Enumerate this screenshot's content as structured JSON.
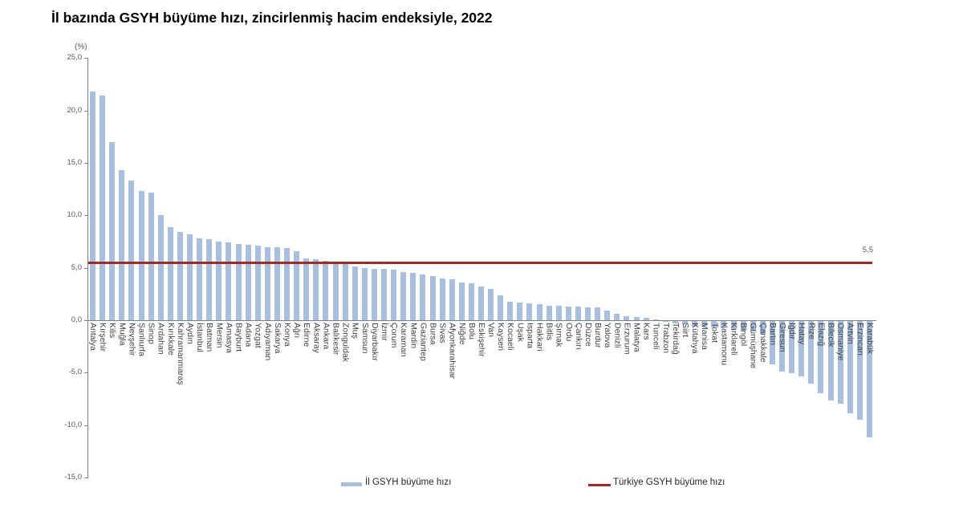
{
  "chart_data": {
    "type": "bar",
    "title": "İl bazında GSYH büyüme hızı, zincirlenmiş hacim endeksiyle, 2022",
    "unit_label": "(%)",
    "categories": [
      "Antalya",
      "Kırşehir",
      "Kilis",
      "Muğla",
      "Nevşehir",
      "Şanlıurfa",
      "Sinop",
      "Ardahan",
      "Kırıkkale",
      "Kahramanmaraş",
      "Aydın",
      "İstanbul",
      "Batman",
      "Mersin",
      "Amasya",
      "Bayburt",
      "Adana",
      "Yozgat",
      "Adıyaman",
      "Sakarya",
      "Konya",
      "Ağrı",
      "Edirne",
      "Aksaray",
      "Ankara",
      "Balıkesir",
      "Zonguldak",
      "Muş",
      "Samsun",
      "Diyarbakır",
      "İzmir",
      "Çorum",
      "Karaman",
      "Mardin",
      "Gaziantep",
      "Bursa",
      "Sivas",
      "Afyonkarahisar",
      "Niğde",
      "Bolu",
      "Eskişehir",
      "Van",
      "Kayseri",
      "Kocaeli",
      "Uşak",
      "Isparta",
      "Hakkari",
      "Bitlis",
      "Şırnak",
      "Ordu",
      "Çankırı",
      "Düzce",
      "Burdur",
      "Yalova",
      "Denizli",
      "Erzurum",
      "Malatya",
      "Kars",
      "Tunceli",
      "Trabzon",
      "Tekirdağ",
      "Siirt",
      "Kütahya",
      "Manisa",
      "Tokat",
      "Kastamonu",
      "Kırklareli",
      "Bingöl",
      "Gümüşhane",
      "Çanakkale",
      "Bartın",
      "Giresun",
      "Iğdır",
      "Hatay",
      "Rize",
      "Elazığ",
      "Bilecik",
      "Osmaniye",
      "Artvin",
      "Erzincan",
      "Karabük"
    ],
    "series": [
      {
        "name": "İl GSYH büyüme hızı",
        "values": [
          21.8,
          21.4,
          17.0,
          14.3,
          13.3,
          12.3,
          12.2,
          10.0,
          8.9,
          8.4,
          8.2,
          7.8,
          7.7,
          7.5,
          7.4,
          7.3,
          7.2,
          7.1,
          7.0,
          7.0,
          6.9,
          6.6,
          5.9,
          5.8,
          5.7,
          5.5,
          5.4,
          5.1,
          5.0,
          4.9,
          4.9,
          4.8,
          4.6,
          4.5,
          4.4,
          4.2,
          4.0,
          3.9,
          3.6,
          3.5,
          3.2,
          3.0,
          2.4,
          1.8,
          1.7,
          1.6,
          1.5,
          1.4,
          1.4,
          1.3,
          1.3,
          1.2,
          1.2,
          0.9,
          0.6,
          0.4,
          0.3,
          0.2,
          0.1,
          -0.1,
          -0.2,
          -0.3,
          -0.5,
          -0.5,
          -0.6,
          -0.7,
          -0.8,
          -0.9,
          -1.0,
          -1.2,
          -4.1,
          -4.8,
          -5.0,
          -5.3,
          -6.0,
          -6.9,
          -7.6,
          -7.9,
          -8.8,
          -9.4,
          -11.1
        ]
      }
    ],
    "reference_line": {
      "name": "Türkiye GSYH büyüme hızı",
      "value": 5.5,
      "display": "5,5"
    },
    "ylim": [
      -15,
      25
    ],
    "ytick_step": 5,
    "ytick_labels": [
      "25,0",
      "20,0",
      "15,0",
      "10,0",
      "5,0",
      "0,0",
      "-5,0",
      "-10,0",
      "-15,0"
    ],
    "grid": "off",
    "legend_position": "bottom",
    "colors": {
      "bar": "#A9BFE0",
      "reference": "#9E2B26",
      "axis": "#808080",
      "tick_text": "#595959"
    }
  }
}
